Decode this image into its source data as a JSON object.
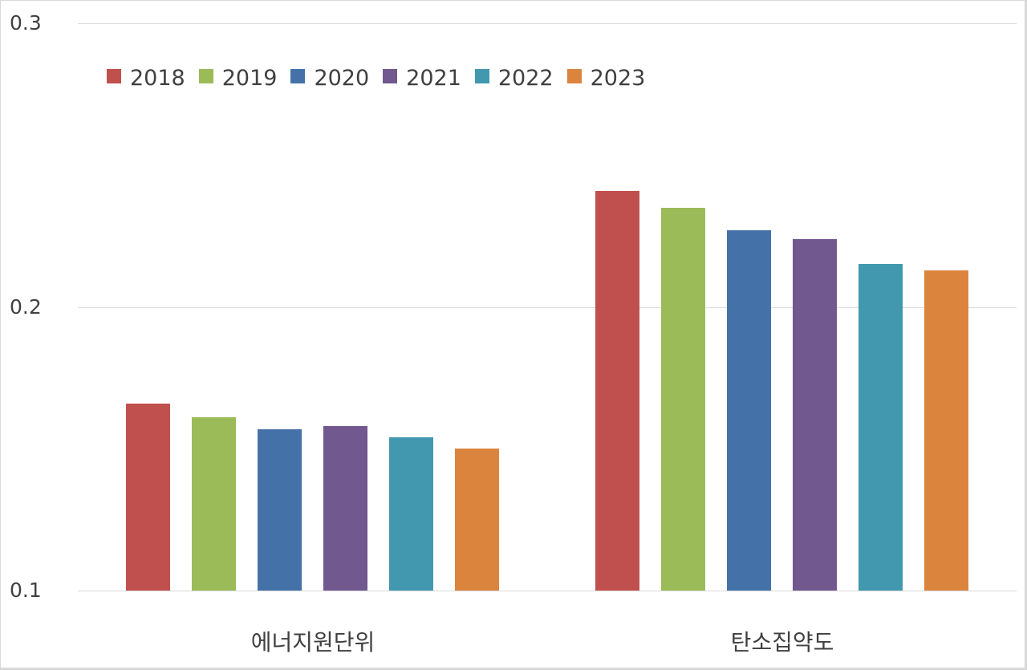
{
  "chart_data": {
    "type": "bar",
    "title": "",
    "xlabel": "",
    "ylabel": "",
    "ylim": [
      0.1,
      0.3
    ],
    "yticks": [
      "0.1",
      "0.2",
      "0.3"
    ],
    "grid": true,
    "legend_position": "top-left (inside plot)",
    "categories": [
      "에너지원단위",
      "탄소집약도"
    ],
    "series": [
      {
        "name": "2018",
        "color": "#c0504d",
        "values": [
          0.166,
          0.241
        ]
      },
      {
        "name": "2019",
        "color": "#9bbb59",
        "values": [
          0.161,
          0.235
        ]
      },
      {
        "name": "2020",
        "color": "#4472a8",
        "values": [
          0.157,
          0.227
        ]
      },
      {
        "name": "2021",
        "color": "#71588f",
        "values": [
          0.158,
          0.224
        ]
      },
      {
        "name": "2022",
        "color": "#4198af",
        "values": [
          0.154,
          0.215
        ]
      },
      {
        "name": "2023",
        "color": "#db843d",
        "values": [
          0.15,
          0.213
        ]
      }
    ]
  },
  "axis": {
    "y_labels": [
      "0.3",
      "0.2",
      "0.1"
    ]
  },
  "legend": [
    "2018",
    "2019",
    "2020",
    "2021",
    "2022",
    "2023"
  ],
  "categories": [
    "에너지원단위",
    "탄소집약도"
  ]
}
